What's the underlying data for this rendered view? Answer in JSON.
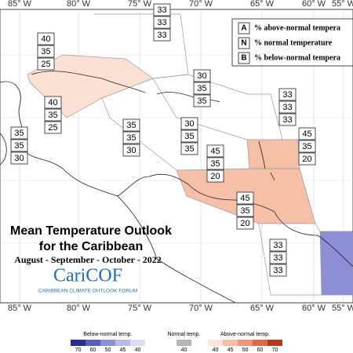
{
  "map": {
    "top_lon_labels": [
      "85° W",
      "80° W",
      "75° W",
      "70° W",
      "65° W",
      "60° W",
      "55° W"
    ],
    "bottom_lon_labels": [
      "85° W",
      "80° W",
      "75° W",
      "70° W",
      "65° W",
      "60° W",
      "55° W"
    ],
    "legend": {
      "rows": [
        {
          "key": "A",
          "text": "% above-normal tempera"
        },
        {
          "key": "N",
          "text": "% normal temperature"
        },
        {
          "key": "B",
          "text": "% below-normal tempera"
        }
      ]
    },
    "title": {
      "line1": "Mean Temperature Outlook",
      "line2": "for the Caribbean",
      "period": "August - September - October - 2022"
    },
    "logo": {
      "name": "CariCOF",
      "tagline": "CARIBBEAN CLIMATE OUTLOOK FORUM"
    },
    "regions": [
      {
        "probabilities": [
          40,
          35,
          25
        ]
      },
      {
        "probabilities": [
          40,
          35,
          25
        ]
      },
      {
        "probabilities": [
          35,
          35,
          30
        ]
      },
      {
        "probabilities": [
          35,
          35,
          30
        ]
      },
      {
        "probabilities": [
          33,
          33,
          33
        ]
      },
      {
        "probabilities": [
          30,
          35,
          35
        ]
      },
      {
        "probabilities": [
          30,
          35,
          35
        ]
      },
      {
        "probabilities": [
          45,
          35,
          20
        ]
      },
      {
        "probabilities": [
          33,
          33,
          33
        ]
      },
      {
        "probabilities": [
          45,
          35,
          20
        ]
      },
      {
        "probabilities": [
          45,
          35,
          20
        ]
      },
      {
        "probabilities": [
          33,
          33,
          33
        ]
      }
    ],
    "colorbar": {
      "below": {
        "label": "Below-normal temp.",
        "ticks": [
          70,
          60,
          50,
          45,
          40
        ]
      },
      "normal": {
        "label": "Normal temp.",
        "ticks": [
          40
        ]
      },
      "above": {
        "label": "Above-normal temp.",
        "ticks": [
          40,
          45,
          50,
          60,
          70
        ]
      }
    }
  }
}
